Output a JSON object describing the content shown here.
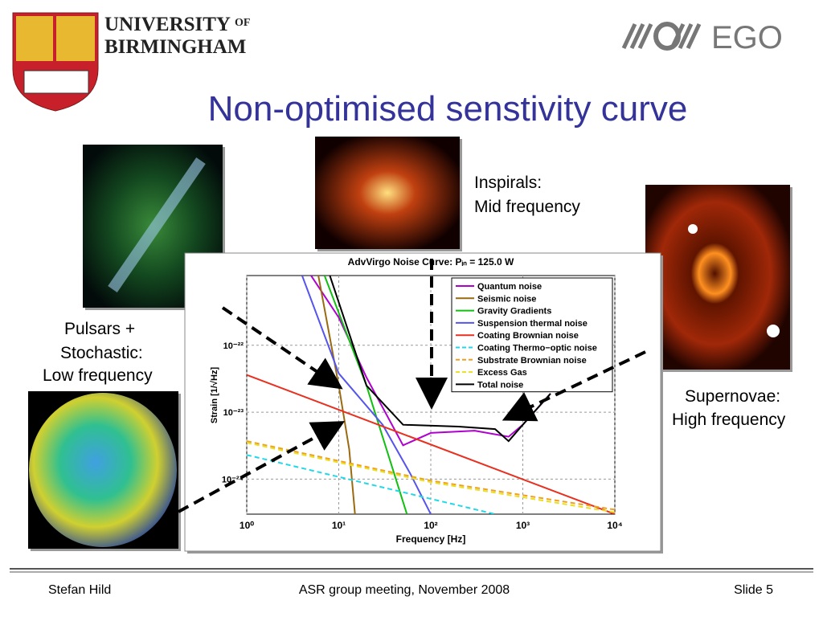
{
  "header": {
    "university": [
      "UNIVERSITY",
      "OF",
      "BIRMINGHAM"
    ],
    "logo": "EGO"
  },
  "title": "Non-optimised senstivity curve",
  "annotations": {
    "inspirals": [
      "Inspirals:",
      "Mid frequency"
    ],
    "pulsars": [
      "Pulsars +",
      "Stochastic:",
      "Low frequency"
    ],
    "supernovae": [
      "Supernovae:",
      "High frequency"
    ]
  },
  "footer": {
    "author": "Stefan Hild",
    "event": "ASR group meeting, November 2008",
    "slide": "Slide 5"
  },
  "chart_data": {
    "type": "line",
    "title": "AdvVirgo Noise Curve: Pᵢₙ = 125.0 W",
    "x_label": "Frequency [Hz]",
    "y_label": "Strain [1/√Hz]",
    "xscale": "log",
    "yscale": "log",
    "grid": true,
    "xlim": [
      1,
      10000
    ],
    "ylim": [
      3e-25,
      1.1e-21
    ],
    "xticks": [
      {
        "value": 1,
        "label": "10⁰"
      },
      {
        "value": 10,
        "label": "10¹"
      },
      {
        "value": 100,
        "label": "10²"
      },
      {
        "value": 1000,
        "label": "10³"
      },
      {
        "value": 10000,
        "label": "10⁴"
      }
    ],
    "yticks": [
      {
        "value": 1e-24,
        "label": "10⁻²⁴"
      },
      {
        "value": 1e-23,
        "label": "10⁻²³"
      },
      {
        "value": 1e-22,
        "label": "10⁻²²"
      }
    ],
    "series": [
      {
        "name": "Quantum noise",
        "color": "#b000d0",
        "style": "solid",
        "x": [
          5,
          10,
          20,
          50,
          100,
          300,
          700,
          1000,
          2000
        ],
        "values": [
          1.1e-21,
          2.6e-22,
          3.3e-23,
          3.2e-24,
          4.9e-24,
          5.3e-24,
          4.3e-24,
          6.5e-24,
          1.9e-23
        ]
      },
      {
        "name": "Seismic noise",
        "color": "#9a6a10",
        "style": "solid",
        "x": [
          6,
          10,
          13,
          15
        ],
        "values": [
          1.1e-21,
          2.5e-23,
          2.8e-24,
          3e-25
        ]
      },
      {
        "name": "Gravity Gradients",
        "color": "#10c010",
        "style": "solid",
        "x": [
          7,
          20,
          55
        ],
        "values": [
          1.1e-21,
          2.5e-23,
          3e-25
        ]
      },
      {
        "name": "Suspension thermal noise",
        "color": "#5555ee",
        "style": "solid",
        "x": [
          4,
          10,
          30,
          60,
          100
        ],
        "values": [
          1.1e-21,
          3.8e-23,
          6.5e-24,
          1.2e-24,
          3e-25
        ]
      },
      {
        "name": "Coating Brownian noise",
        "color": "#e83020",
        "style": "solid",
        "x": [
          1,
          10000
        ],
        "values": [
          3.6e-23,
          3e-25
        ]
      },
      {
        "name": "Coating Thermo−optic noise",
        "color": "#20d8e8",
        "style": "dashed",
        "x": [
          1,
          500
        ],
        "values": [
          2.3e-24,
          3e-25
        ]
      },
      {
        "name": "Substrate Brownian noise",
        "color": "#f0a020",
        "style": "dashed",
        "x": [
          1,
          100,
          10000
        ],
        "values": [
          3.7e-24,
          9.5e-25,
          3.5e-25
        ]
      },
      {
        "name": "Excess Gas",
        "color": "#e8e020",
        "style": "dashed",
        "x": [
          1,
          100,
          10000
        ],
        "values": [
          3.5e-24,
          9e-25,
          3.2e-25
        ]
      },
      {
        "name": "Total noise",
        "color": "#000000",
        "style": "solid",
        "x": [
          8,
          20,
          50,
          200,
          500,
          700,
          1000,
          2000
        ],
        "values": [
          1.1e-21,
          2.5e-23,
          6.5e-24,
          6.1e-24,
          5.6e-24,
          3.7e-24,
          6.5e-24,
          1.9e-23
        ]
      }
    ]
  }
}
